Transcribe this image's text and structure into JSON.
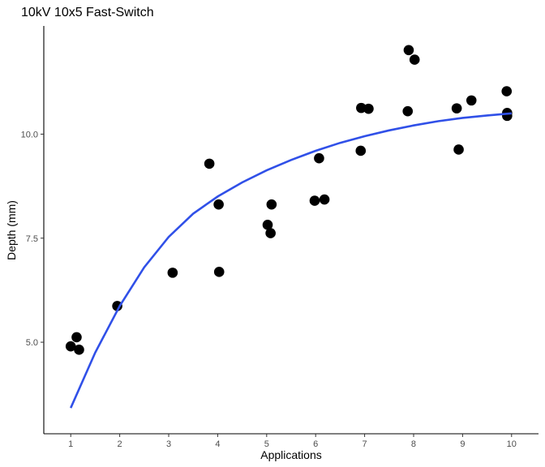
{
  "chart_data": {
    "type": "scatter",
    "title": "10kV 10x5 Fast-Switch",
    "xlabel": "Applications",
    "ylabel": "Depth (mm)",
    "xlim": [
      0.45,
      10.55
    ],
    "ylim": [
      2.8,
      12.6
    ],
    "x_ticks": [
      1,
      2,
      3,
      4,
      5,
      6,
      7,
      8,
      9,
      10
    ],
    "y_ticks": [
      5.0,
      7.5,
      10.0
    ],
    "y_tick_labels": [
      "5.0",
      "7.5",
      "10.0"
    ],
    "grid": false,
    "colors": {
      "points": "#000000",
      "fit": "#3050e8",
      "axis": "#000000"
    },
    "points": [
      {
        "x": 1.0,
        "y": 4.9
      },
      {
        "x": 1.12,
        "y": 5.12
      },
      {
        "x": 1.17,
        "y": 4.82
      },
      {
        "x": 1.95,
        "y": 5.87
      },
      {
        "x": 3.08,
        "y": 6.67
      },
      {
        "x": 3.83,
        "y": 9.29
      },
      {
        "x": 4.02,
        "y": 8.31
      },
      {
        "x": 4.03,
        "y": 6.69
      },
      {
        "x": 5.02,
        "y": 7.82
      },
      {
        "x": 5.08,
        "y": 7.62
      },
      {
        "x": 5.1,
        "y": 8.31
      },
      {
        "x": 5.98,
        "y": 8.4
      },
      {
        "x": 6.07,
        "y": 9.42
      },
      {
        "x": 6.18,
        "y": 8.43
      },
      {
        "x": 6.92,
        "y": 9.6
      },
      {
        "x": 6.93,
        "y": 10.63
      },
      {
        "x": 7.08,
        "y": 10.61
      },
      {
        "x": 7.88,
        "y": 10.55
      },
      {
        "x": 7.9,
        "y": 12.02
      },
      {
        "x": 8.02,
        "y": 11.79
      },
      {
        "x": 8.88,
        "y": 10.62
      },
      {
        "x": 8.92,
        "y": 9.63
      },
      {
        "x": 9.18,
        "y": 10.81
      },
      {
        "x": 9.9,
        "y": 11.03
      },
      {
        "x": 9.91,
        "y": 10.51
      },
      {
        "x": 9.91,
        "y": 10.44
      }
    ],
    "fit": {
      "model": "exponential",
      "x_range": [
        1,
        10
      ],
      "curve": [
        {
          "x": 1.0,
          "y": 3.42
        },
        {
          "x": 1.5,
          "y": 4.75
        },
        {
          "x": 2.0,
          "y": 5.87
        },
        {
          "x": 2.5,
          "y": 6.8
        },
        {
          "x": 3.0,
          "y": 7.53
        },
        {
          "x": 3.5,
          "y": 8.09
        },
        {
          "x": 4.0,
          "y": 8.5
        },
        {
          "x": 4.5,
          "y": 8.84
        },
        {
          "x": 5.0,
          "y": 9.13
        },
        {
          "x": 5.5,
          "y": 9.38
        },
        {
          "x": 6.0,
          "y": 9.6
        },
        {
          "x": 6.5,
          "y": 9.79
        },
        {
          "x": 7.0,
          "y": 9.95
        },
        {
          "x": 7.5,
          "y": 10.09
        },
        {
          "x": 8.0,
          "y": 10.21
        },
        {
          "x": 8.5,
          "y": 10.31
        },
        {
          "x": 9.0,
          "y": 10.39
        },
        {
          "x": 9.5,
          "y": 10.45
        },
        {
          "x": 10.0,
          "y": 10.5
        }
      ]
    }
  }
}
